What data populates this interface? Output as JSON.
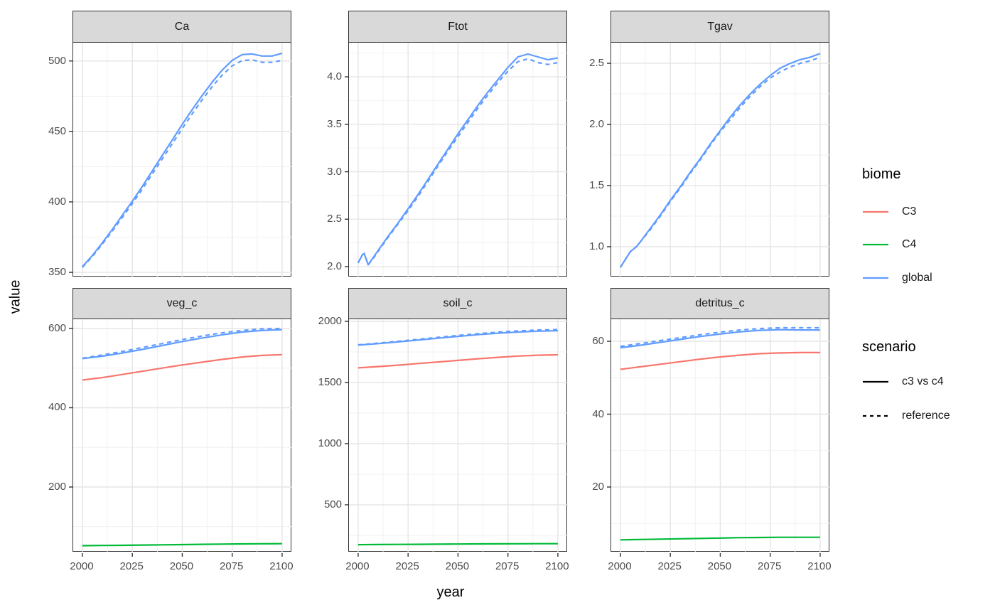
{
  "figure": {
    "y_axis_title": "value",
    "x_axis_title": "year",
    "x_ticks": [
      {
        "value": 2000,
        "label": "2000"
      },
      {
        "value": 2025,
        "label": "2025"
      },
      {
        "value": 2050,
        "label": "2050"
      },
      {
        "value": 2075,
        "label": "2075"
      },
      {
        "value": 2100,
        "label": "2100"
      }
    ]
  },
  "legend": {
    "biome": {
      "title": "biome",
      "items": [
        {
          "label": "C3",
          "color": "#F8766D",
          "linetype": "solid"
        },
        {
          "label": "C4",
          "color": "#00BA38",
          "linetype": "solid"
        },
        {
          "label": "global",
          "color": "#619CFF",
          "linetype": "solid"
        }
      ]
    },
    "scenario": {
      "title": "scenario",
      "items": [
        {
          "label": "c3 vs c4",
          "color": "#000000",
          "linetype": "solid"
        },
        {
          "label": "reference",
          "color": "#000000",
          "linetype": "dashed"
        }
      ]
    }
  },
  "chart_data": [
    {
      "type": "line",
      "facet": "Ca",
      "row": 0,
      "col": 0,
      "xlim": [
        1995.4,
        2105
      ],
      "ylim": [
        346.5,
        513.0
      ],
      "yticks": [
        {
          "value": 350,
          "label": "350"
        },
        {
          "value": 400,
          "label": "400"
        },
        {
          "value": 450,
          "label": "450"
        },
        {
          "value": 500,
          "label": "500"
        }
      ],
      "series": [
        {
          "biome": "global",
          "scenario": "c3 vs c4",
          "color": "#619CFF",
          "linetype": "solid",
          "x": [
            2000,
            2005,
            2010,
            2015,
            2020,
            2025,
            2030,
            2035,
            2040,
            2045,
            2050,
            2055,
            2060,
            2065,
            2070,
            2075,
            2080,
            2085,
            2090,
            2095,
            2100
          ],
          "values": [
            354,
            362,
            371,
            380.5,
            390.5,
            400.5,
            411,
            422,
            433,
            444,
            455,
            465.5,
            475.5,
            485,
            493.5,
            500.5,
            504.5,
            505,
            503.5,
            503.5,
            505.5
          ]
        },
        {
          "biome": "global",
          "scenario": "reference",
          "color": "#619CFF",
          "linetype": "dashed",
          "x": [
            2000,
            2005,
            2010,
            2015,
            2020,
            2025,
            2030,
            2035,
            2040,
            2045,
            2050,
            2055,
            2060,
            2065,
            2070,
            2075,
            2080,
            2085,
            2090,
            2095,
            2100
          ],
          "values": [
            353.5,
            361.3,
            370,
            379.3,
            389,
            398.8,
            409,
            419.8,
            430.5,
            441.3,
            452,
            462.5,
            472.5,
            481.8,
            490,
            496.5,
            500.3,
            500.8,
            499,
            499,
            500.5
          ]
        }
      ]
    },
    {
      "type": "line",
      "facet": "Ftot",
      "row": 0,
      "col": 1,
      "xlim": [
        1995.4,
        2105
      ],
      "ylim": [
        1.888,
        4.36
      ],
      "yticks": [
        {
          "value": 2.0,
          "label": "2.0"
        },
        {
          "value": 2.5,
          "label": "2.5"
        },
        {
          "value": 3.0,
          "label": "3.0"
        },
        {
          "value": 3.5,
          "label": "3.5"
        },
        {
          "value": 4.0,
          "label": "4.0"
        }
      ],
      "series": [
        {
          "biome": "global",
          "scenario": "c3 vs c4",
          "color": "#619CFF",
          "linetype": "solid",
          "x": [
            2000,
            2002,
            2003,
            2005,
            2007,
            2010,
            2015,
            2020,
            2025,
            2030,
            2035,
            2040,
            2045,
            2050,
            2055,
            2060,
            2065,
            2070,
            2075,
            2080,
            2085,
            2090,
            2095,
            2100
          ],
          "values": [
            2.04,
            2.12,
            2.14,
            2.02,
            2.08,
            2.17,
            2.32,
            2.46,
            2.61,
            2.76,
            2.92,
            3.08,
            3.24,
            3.4,
            3.55,
            3.7,
            3.84,
            3.97,
            4.1,
            4.21,
            4.24,
            4.21,
            4.18,
            4.2
          ]
        },
        {
          "biome": "global",
          "scenario": "reference",
          "color": "#619CFF",
          "linetype": "dashed",
          "x": [
            2000,
            2002,
            2003,
            2005,
            2007,
            2010,
            2015,
            2020,
            2025,
            2030,
            2035,
            2040,
            2045,
            2050,
            2055,
            2060,
            2065,
            2070,
            2075,
            2080,
            2085,
            2090,
            2095,
            2100
          ],
          "values": [
            2.04,
            2.12,
            2.14,
            2.02,
            2.07,
            2.16,
            2.31,
            2.45,
            2.59,
            2.74,
            2.9,
            3.06,
            3.22,
            3.37,
            3.52,
            3.67,
            3.81,
            3.94,
            4.06,
            4.16,
            4.19,
            4.15,
            4.13,
            4.15
          ]
        }
      ]
    },
    {
      "type": "line",
      "facet": "Tgav",
      "row": 0,
      "col": 2,
      "xlim": [
        1995.4,
        2105
      ],
      "ylim": [
        0.75,
        2.669
      ],
      "yticks": [
        {
          "value": 1.0,
          "label": "1.0"
        },
        {
          "value": 1.5,
          "label": "1.5"
        },
        {
          "value": 2.0,
          "label": "2.0"
        },
        {
          "value": 2.5,
          "label": "2.5"
        }
      ],
      "series": [
        {
          "biome": "global",
          "scenario": "c3 vs c4",
          "color": "#619CFF",
          "linetype": "solid",
          "x": [
            2000,
            2003,
            2005,
            2008,
            2010,
            2015,
            2020,
            2025,
            2030,
            2035,
            2040,
            2045,
            2050,
            2055,
            2060,
            2065,
            2070,
            2075,
            2080,
            2085,
            2090,
            2095,
            2100
          ],
          "values": [
            0.83,
            0.91,
            0.96,
            1.0,
            1.04,
            1.15,
            1.26,
            1.38,
            1.49,
            1.61,
            1.72,
            1.84,
            1.95,
            2.06,
            2.16,
            2.25,
            2.33,
            2.4,
            2.46,
            2.5,
            2.53,
            2.55,
            2.58
          ]
        },
        {
          "biome": "global",
          "scenario": "reference",
          "color": "#619CFF",
          "linetype": "dashed",
          "x": [
            2000,
            2003,
            2005,
            2008,
            2010,
            2015,
            2020,
            2025,
            2030,
            2035,
            2040,
            2045,
            2050,
            2055,
            2060,
            2065,
            2070,
            2075,
            2080,
            2085,
            2090,
            2095,
            2100
          ],
          "values": [
            0.83,
            0.91,
            0.96,
            1.0,
            1.04,
            1.14,
            1.25,
            1.37,
            1.48,
            1.6,
            1.71,
            1.83,
            1.94,
            2.04,
            2.14,
            2.23,
            2.31,
            2.38,
            2.43,
            2.47,
            2.5,
            2.52,
            2.55
          ]
        }
      ]
    },
    {
      "type": "line",
      "facet": "veg_c",
      "row": 1,
      "col": 0,
      "xlim": [
        1995.4,
        2105
      ],
      "ylim": [
        35,
        623.3
      ],
      "yticks": [
        {
          "value": 200,
          "label": "200"
        },
        {
          "value": 400,
          "label": "400"
        },
        {
          "value": 600,
          "label": "600"
        }
      ],
      "series": [
        {
          "biome": "C4",
          "scenario": "c3 vs c4",
          "color": "#00BA38",
          "linetype": "solid",
          "x": [
            2000,
            2010,
            2020,
            2030,
            2040,
            2050,
            2060,
            2070,
            2080,
            2090,
            2100
          ],
          "values": [
            52,
            52.5,
            53,
            53.6,
            54.2,
            54.8,
            55.4,
            56,
            56.5,
            56.8,
            57
          ]
        },
        {
          "biome": "C3",
          "scenario": "c3 vs c4",
          "color": "#F8766D",
          "linetype": "solid",
          "x": [
            2000,
            2010,
            2020,
            2030,
            2040,
            2050,
            2060,
            2070,
            2080,
            2090,
            2100
          ],
          "values": [
            470,
            476,
            484,
            492,
            500,
            508,
            515,
            522,
            528,
            532,
            534
          ]
        },
        {
          "biome": "global",
          "scenario": "c3 vs c4",
          "color": "#619CFF",
          "linetype": "solid",
          "x": [
            2000,
            2010,
            2020,
            2030,
            2040,
            2050,
            2060,
            2070,
            2080,
            2090,
            2100
          ],
          "values": [
            524,
            530,
            538,
            547,
            557,
            567,
            576,
            584,
            591,
            595,
            597
          ]
        },
        {
          "biome": "global",
          "scenario": "reference",
          "color": "#619CFF",
          "linetype": "dashed",
          "x": [
            2000,
            2010,
            2020,
            2030,
            2040,
            2050,
            2060,
            2070,
            2080,
            2090,
            2100
          ],
          "values": [
            525,
            533,
            542,
            552,
            562,
            572,
            581,
            589,
            595,
            599,
            600
          ]
        }
      ]
    },
    {
      "type": "line",
      "facet": "soil_c",
      "row": 1,
      "col": 1,
      "xlim": [
        1995.4,
        2105
      ],
      "ylim": [
        110.5,
        2017.4
      ],
      "yticks": [
        {
          "value": 500,
          "label": "500"
        },
        {
          "value": 1000,
          "label": "1000"
        },
        {
          "value": 1500,
          "label": "1500"
        },
        {
          "value": 2000,
          "label": "2000"
        }
      ],
      "series": [
        {
          "biome": "C4",
          "scenario": "c3 vs c4",
          "color": "#00BA38",
          "linetype": "solid",
          "x": [
            2000,
            2010,
            2020,
            2030,
            2040,
            2050,
            2060,
            2070,
            2080,
            2090,
            2100
          ],
          "values": [
            174,
            175,
            176,
            177,
            178,
            179,
            180,
            181,
            181.5,
            182,
            182
          ]
        },
        {
          "biome": "C3",
          "scenario": "c3 vs c4",
          "color": "#F8766D",
          "linetype": "solid",
          "x": [
            2000,
            2010,
            2020,
            2030,
            2040,
            2050,
            2060,
            2070,
            2080,
            2090,
            2100
          ],
          "values": [
            1620,
            1630,
            1642,
            1655,
            1668,
            1681,
            1694,
            1706,
            1716,
            1723,
            1727
          ]
        },
        {
          "biome": "global",
          "scenario": "c3 vs c4",
          "color": "#619CFF",
          "linetype": "solid",
          "x": [
            2000,
            2010,
            2020,
            2030,
            2040,
            2050,
            2060,
            2070,
            2080,
            2090,
            2100
          ],
          "values": [
            1806,
            1818,
            1832,
            1847,
            1862,
            1877,
            1891,
            1903,
            1913,
            1920,
            1924
          ]
        },
        {
          "biome": "global",
          "scenario": "reference",
          "color": "#619CFF",
          "linetype": "dashed",
          "x": [
            2000,
            2010,
            2020,
            2030,
            2040,
            2050,
            2060,
            2070,
            2080,
            2090,
            2100
          ],
          "values": [
            1808,
            1822,
            1837,
            1853,
            1869,
            1885,
            1899,
            1912,
            1922,
            1929,
            1933
          ]
        }
      ]
    },
    {
      "type": "line",
      "facet": "detritus_c",
      "row": 1,
      "col": 2,
      "xlim": [
        1995.4,
        2105
      ],
      "ylim": [
        2.05,
        66.05
      ],
      "yticks": [
        {
          "value": 20,
          "label": "20"
        },
        {
          "value": 40,
          "label": "40"
        },
        {
          "value": 60,
          "label": "60"
        }
      ],
      "series": [
        {
          "biome": "C4",
          "scenario": "c3 vs c4",
          "color": "#00BA38",
          "linetype": "solid",
          "x": [
            2000,
            2010,
            2020,
            2030,
            2040,
            2050,
            2060,
            2070,
            2080,
            2090,
            2100
          ],
          "values": [
            5.5,
            5.6,
            5.7,
            5.8,
            5.9,
            6.0,
            6.1,
            6.15,
            6.2,
            6.2,
            6.2
          ]
        },
        {
          "biome": "C3",
          "scenario": "c3 vs c4",
          "color": "#F8766D",
          "linetype": "solid",
          "x": [
            2000,
            2010,
            2020,
            2030,
            2040,
            2050,
            2060,
            2070,
            2080,
            2090,
            2100
          ],
          "values": [
            52.3,
            53.0,
            53.7,
            54.4,
            55.1,
            55.7,
            56.2,
            56.6,
            56.8,
            56.9,
            56.9
          ]
        },
        {
          "biome": "global",
          "scenario": "c3 vs c4",
          "color": "#619CFF",
          "linetype": "solid",
          "x": [
            2000,
            2010,
            2020,
            2030,
            2040,
            2050,
            2060,
            2070,
            2080,
            2090,
            2100
          ],
          "values": [
            58.2,
            58.9,
            59.7,
            60.5,
            61.3,
            62.0,
            62.6,
            63.0,
            63.2,
            63.1,
            63.1
          ]
        },
        {
          "biome": "global",
          "scenario": "reference",
          "color": "#619CFF",
          "linetype": "dashed",
          "x": [
            2000,
            2010,
            2020,
            2030,
            2040,
            2050,
            2060,
            2070,
            2080,
            2090,
            2100
          ],
          "values": [
            58.6,
            59.4,
            60.2,
            61.0,
            61.8,
            62.5,
            63.1,
            63.5,
            63.7,
            63.7,
            63.7
          ]
        }
      ]
    }
  ]
}
